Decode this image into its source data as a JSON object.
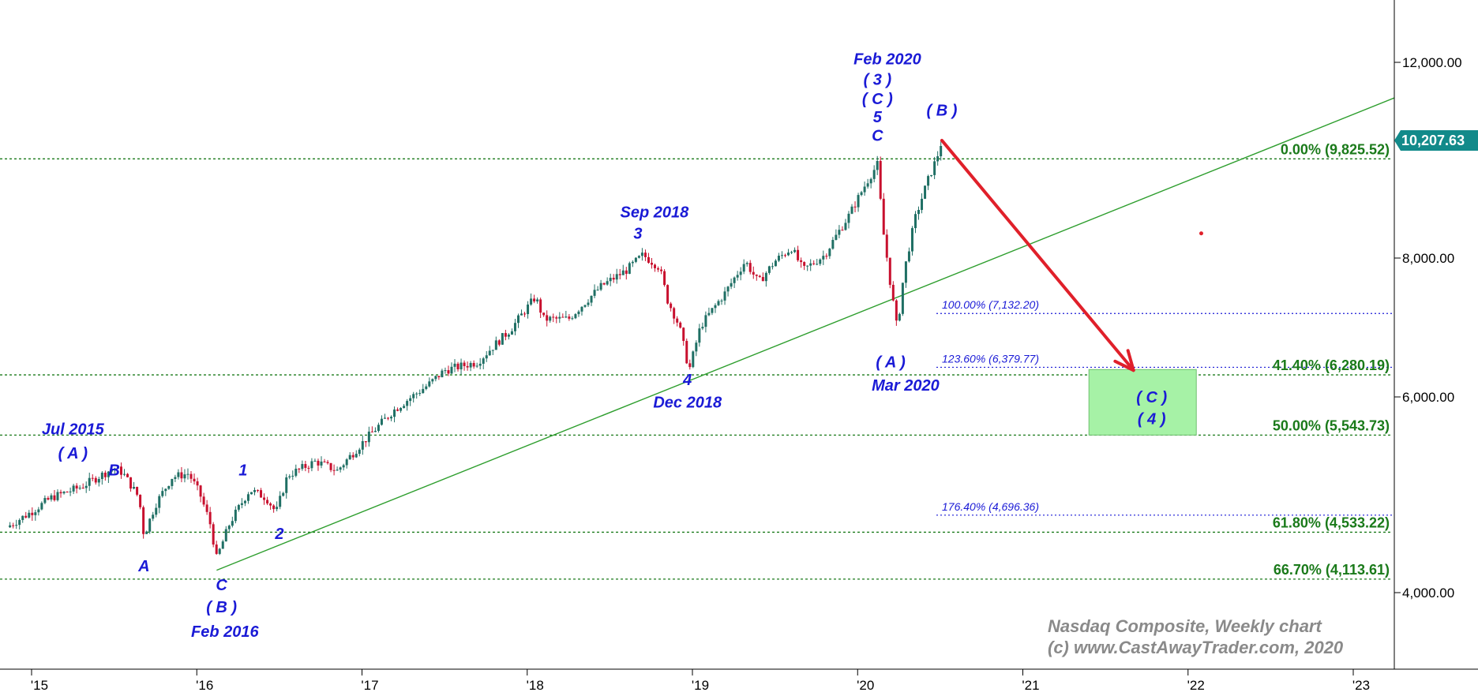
{
  "chart_data": {
    "type": "candlestick",
    "title": "Nasdaq Composite, Weekly chart",
    "credit": "(c) www.CastAwayTrader.com, 2020",
    "y_scale": "log",
    "ylim": [
      3600,
      13000
    ],
    "xlim": [
      2014.85,
      2023.25
    ],
    "y_ticks": [
      {
        "value": 4000,
        "label": "4,000.00"
      },
      {
        "value": 6000,
        "label": "6,000.00"
      },
      {
        "value": 8000,
        "label": "8,000.00"
      },
      {
        "value": 12000,
        "label": "12,000.00"
      }
    ],
    "x_ticks": [
      {
        "value": 2015,
        "label": "'15"
      },
      {
        "value": 2016,
        "label": "'16"
      },
      {
        "value": 2017,
        "label": "'17"
      },
      {
        "value": 2018,
        "label": "'18"
      },
      {
        "value": 2019,
        "label": "'19"
      },
      {
        "value": 2020,
        "label": "'20"
      },
      {
        "value": 2021,
        "label": "'21"
      },
      {
        "value": 2022,
        "label": "'22"
      },
      {
        "value": 2023,
        "label": "'23"
      }
    ],
    "last_price": {
      "value": 10207.63,
      "label": "10,207.63"
    },
    "price_path": [
      [
        2014.85,
        4580
      ],
      [
        2015.0,
        4730
      ],
      [
        2015.12,
        4870
      ],
      [
        2015.3,
        4980
      ],
      [
        2015.5,
        5180
      ],
      [
        2015.55,
        5130
      ],
      [
        2015.65,
        4870
      ],
      [
        2015.68,
        4500
      ],
      [
        2015.75,
        4800
      ],
      [
        2015.85,
        5080
      ],
      [
        2015.95,
        5120
      ],
      [
        2016.02,
        4900
      ],
      [
        2016.08,
        4620
      ],
      [
        2016.12,
        4290
      ],
      [
        2016.2,
        4620
      ],
      [
        2016.32,
        4950
      ],
      [
        2016.42,
        4870
      ],
      [
        2016.48,
        4720
      ],
      [
        2016.55,
        5100
      ],
      [
        2016.72,
        5250
      ],
      [
        2016.85,
        5150
      ],
      [
        2017.0,
        5450
      ],
      [
        2017.2,
        5850
      ],
      [
        2017.4,
        6150
      ],
      [
        2017.5,
        6340
      ],
      [
        2017.7,
        6450
      ],
      [
        2017.9,
        6900
      ],
      [
        2018.05,
        7380
      ],
      [
        2018.1,
        7050
      ],
      [
        2018.25,
        7050
      ],
      [
        2018.45,
        7550
      ],
      [
        2018.6,
        7800
      ],
      [
        2018.7,
        8050
      ],
      [
        2018.8,
        7850
      ],
      [
        2018.85,
        7330
      ],
      [
        2018.92,
        6950
      ],
      [
        2018.98,
        6333
      ],
      [
        2019.05,
        6950
      ],
      [
        2019.2,
        7450
      ],
      [
        2019.32,
        7950
      ],
      [
        2019.4,
        7600
      ],
      [
        2019.5,
        7950
      ],
      [
        2019.6,
        8170
      ],
      [
        2019.67,
        7800
      ],
      [
        2019.8,
        8050
      ],
      [
        2019.95,
        8750
      ],
      [
        2020.07,
        9450
      ],
      [
        2020.12,
        9710
      ],
      [
        2020.15,
        8550
      ],
      [
        2020.2,
        7550
      ],
      [
        2020.24,
        6880
      ],
      [
        2020.28,
        7750
      ],
      [
        2020.35,
        8700
      ],
      [
        2020.42,
        9350
      ],
      [
        2020.48,
        9850
      ],
      [
        2020.51,
        10207.63
      ]
    ],
    "wave_labels": [
      {
        "x": 2015.25,
        "y": 5550,
        "text": "Jul 2015"
      },
      {
        "x": 2015.25,
        "y": 5280,
        "text": "( A )"
      },
      {
        "x": 2015.5,
        "y": 5100,
        "text": "B"
      },
      {
        "x": 2015.68,
        "y": 4180,
        "text": "A"
      },
      {
        "x": 2016.28,
        "y": 5100,
        "text": "1"
      },
      {
        "x": 2016.5,
        "y": 4470,
        "text": "2"
      },
      {
        "x": 2016.15,
        "y": 4020,
        "text": "C"
      },
      {
        "x": 2016.15,
        "y": 3840,
        "text": "( B )"
      },
      {
        "x": 2016.17,
        "y": 3650,
        "text": "Feb 2016"
      },
      {
        "x": 2018.77,
        "y": 8700,
        "text": "Sep 2018"
      },
      {
        "x": 2018.67,
        "y": 8330,
        "text": "3"
      },
      {
        "x": 2018.97,
        "y": 6150,
        "text": "4"
      },
      {
        "x": 2018.97,
        "y": 5870,
        "text": "Dec 2018"
      },
      {
        "x": 2020.18,
        "y": 11950,
        "text": "Feb 2020"
      },
      {
        "x": 2020.12,
        "y": 11450,
        "text": "( 3 )"
      },
      {
        "x": 2020.12,
        "y": 11000,
        "text": "( C )"
      },
      {
        "x": 2020.12,
        "y": 10600,
        "text": "5"
      },
      {
        "x": 2020.12,
        "y": 10200,
        "text": "C"
      },
      {
        "x": 2020.51,
        "y": 10750,
        "text": "( B )"
      },
      {
        "x": 2020.2,
        "y": 6380,
        "text": "( A )"
      },
      {
        "x": 2020.29,
        "y": 6080,
        "text": "Mar 2020"
      },
      {
        "x": 2021.78,
        "y": 5930,
        "text": "( C )"
      },
      {
        "x": 2021.78,
        "y": 5670,
        "text": "( 4 )"
      }
    ],
    "retracement_levels": [
      {
        "label": "0.00% (9,825.52)",
        "value": 9825.52
      },
      {
        "label": "41.40% (6,280.19)",
        "value": 6280.19
      },
      {
        "label": "50.00% (5,543.73)",
        "value": 5543.73
      },
      {
        "label": "61.80% (4,533.22)",
        "value": 4533.22
      },
      {
        "label": "66.70% (4,113.61)",
        "value": 4113.61
      }
    ],
    "extension_levels": [
      {
        "label": "100.00% (7,132.20)",
        "value": 7132.2
      },
      {
        "label": "123.60% (6,379.77)",
        "value": 6379.77
      },
      {
        "label": "176.40% (4,696.36)",
        "value": 4696.36
      }
    ],
    "trendline": {
      "from": [
        2016.12,
        4190
      ],
      "to": [
        2023.25,
        11150
      ]
    },
    "projection_arrow": {
      "from": [
        2020.51,
        10207.63
      ],
      "to": [
        2021.67,
        6340
      ]
    },
    "target_zone": {
      "x0": 2021.4,
      "x1": 2022.05,
      "y_top": 6350,
      "y_bottom": 5543.73
    },
    "marker": {
      "x": 2022.08,
      "y": 8420
    },
    "colors": {
      "up_candle": "#1f6f64",
      "down_candle": "#c8102e",
      "wave_label": "#1a1ad6",
      "retracement": "#1a7a1a",
      "extension": "#1a1ad6",
      "trendline": "#2e9e2e",
      "arrow": "#e0202a",
      "zone_fill": "#a6f2a6",
      "last_price_bg": "#128a8a",
      "watermark": "#8a8a8a"
    }
  }
}
